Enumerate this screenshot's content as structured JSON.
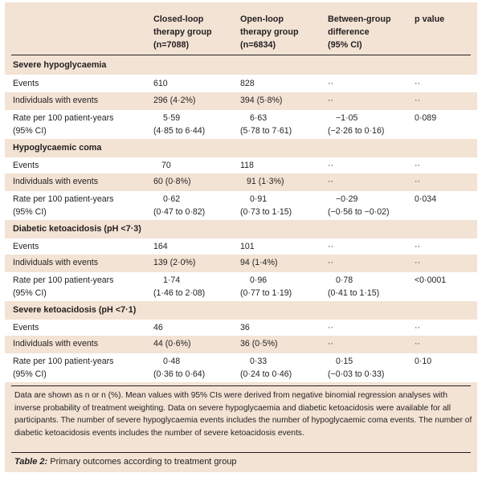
{
  "header": {
    "col1": [
      "Closed-loop",
      "therapy group",
      "(n=7088)"
    ],
    "col2": [
      "Open-loop",
      "therapy group",
      "(n=6834)"
    ],
    "col3": [
      "Between-group",
      "difference",
      "(95% CI)"
    ],
    "col4": [
      "p value"
    ]
  },
  "sections": [
    {
      "title": "Severe hypoglycaemia",
      "rows": [
        {
          "label": "Events",
          "c1": "610",
          "c2": "828",
          "c3": "··",
          "c4": "··"
        },
        {
          "label": "Individuals with events",
          "c1": "296 (4·2%)",
          "c2": "394 (5·8%)",
          "c3": "··",
          "c4": "··"
        },
        {
          "label": "Rate per 100 patient-years",
          "label2": "(95% CI)",
          "c1": "5·59",
          "c1b": "(4·85 to 6·44)",
          "c2": "6·63",
          "c2b": "(5·78 to 7·61)",
          "c3": "−1·05",
          "c3b": "(−2·26 to 0·16)",
          "c4": "0·089"
        }
      ]
    },
    {
      "title": "Hypoglycaemic coma",
      "rows": [
        {
          "label": "Events",
          "c1": "70",
          "c2": "118",
          "c3": "··",
          "c4": "··"
        },
        {
          "label": "Individuals with events",
          "c1": "60 (0·8%)",
          "c2": "91 (1·3%)",
          "c3": "··",
          "c4": "··"
        },
        {
          "label": "Rate per 100 patient-years",
          "label2": "(95% CI)",
          "c1": "0·62",
          "c1b": "(0·47 to 0·82)",
          "c2": "0·91",
          "c2b": "(0·73 to 1·15)",
          "c3": "−0·29",
          "c3b": "(−0·56 to −0·02)",
          "c4": "0·034"
        }
      ]
    },
    {
      "title": "Diabetic ketoacidosis (pH <7·3)",
      "rows": [
        {
          "label": "Events",
          "c1": "164",
          "c2": "101",
          "c3": "··",
          "c4": "··"
        },
        {
          "label": "Individuals with events",
          "c1": "139 (2·0%)",
          "c2": "94 (1·4%)",
          "c3": "··",
          "c4": "··"
        },
        {
          "label": "Rate per 100 patient-years",
          "label2": "(95% CI)",
          "c1": "1·74",
          "c1b": "(1·46 to 2·08)",
          "c2": "0·96",
          "c2b": "(0·77 to 1·19)",
          "c3": "0·78",
          "c3b": "(0·41 to 1·15)",
          "c4": "<0·0001"
        }
      ]
    },
    {
      "title": "Severe ketoacidosis (pH <7·1)",
      "rows": [
        {
          "label": "Events",
          "c1": "46",
          "c2": "36",
          "c3": "··",
          "c4": "··"
        },
        {
          "label": "Individuals with events",
          "c1": "44 (0·6%)",
          "c2": "36 (0·5%)",
          "c3": "··",
          "c4": "··"
        },
        {
          "label": "Rate per 100 patient-years",
          "label2": "(95% CI)",
          "c1": "0·48",
          "c1b": "(0·36 to 0·64)",
          "c2": "0·33",
          "c2b": "(0·24 to 0·46)",
          "c3": "0·15",
          "c3b": "(−0·03 to 0·33)",
          "c4": "0·10"
        }
      ]
    }
  ],
  "footnote": "Data are shown as n or n (%). Mean values with 95% CIs were derived from negative binomial regression analyses with inverse probability of treatment weighting. Data on severe hypoglycaemia and diabetic ketoacidosis were available for all participants. The number of severe hypoglycaemia events includes the number of hypoglycaemic coma events. The number of diabetic ketoacidosis events includes the number of severe ketoacidosis events.",
  "caption": {
    "label": "Table 2:",
    "text": " Primary outcomes according to treatment group"
  }
}
